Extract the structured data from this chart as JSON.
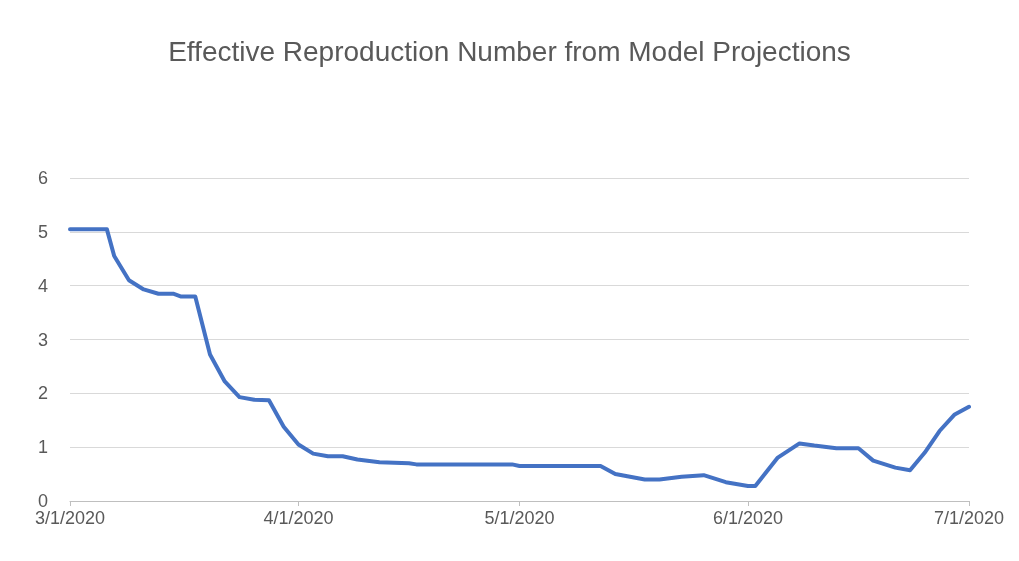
{
  "chart_data": {
    "type": "line",
    "title": "Effective Reproduction Number from Model Projections",
    "x": [
      "2020-03-01",
      "2020-03-06",
      "2020-03-07",
      "2020-03-09",
      "2020-03-11",
      "2020-03-13",
      "2020-03-15",
      "2020-03-16",
      "2020-03-18",
      "2020-03-20",
      "2020-03-22",
      "2020-03-24",
      "2020-03-26",
      "2020-03-28",
      "2020-03-30",
      "2020-04-01",
      "2020-04-03",
      "2020-04-05",
      "2020-04-07",
      "2020-04-09",
      "2020-04-12",
      "2020-04-16",
      "2020-04-17",
      "2020-04-30",
      "2020-05-01",
      "2020-05-12",
      "2020-05-14",
      "2020-05-18",
      "2020-05-20",
      "2020-05-23",
      "2020-05-26",
      "2020-05-29",
      "2020-06-01",
      "2020-06-02",
      "2020-06-05",
      "2020-06-08",
      "2020-06-10",
      "2020-06-13",
      "2020-06-16",
      "2020-06-18",
      "2020-06-21",
      "2020-06-23",
      "2020-06-25",
      "2020-06-27",
      "2020-06-29",
      "2020-07-01"
    ],
    "series": [
      {
        "color": "#4472c4",
        "values": [
          5.05,
          5.05,
          4.55,
          4.1,
          3.93,
          3.85,
          3.85,
          3.8,
          3.8,
          2.72,
          2.22,
          1.93,
          1.88,
          1.87,
          1.38,
          1.05,
          0.88,
          0.83,
          0.83,
          0.77,
          0.72,
          0.7,
          0.68,
          0.68,
          0.65,
          0.65,
          0.5,
          0.4,
          0.4,
          0.45,
          0.48,
          0.35,
          0.28,
          0.28,
          0.8,
          1.07,
          1.03,
          0.98,
          0.98,
          0.75,
          0.62,
          0.57,
          0.9,
          1.3,
          1.6,
          1.75
        ]
      }
    ],
    "xlim": [
      "2020-03-01",
      "2020-07-01"
    ],
    "xticks": [
      {
        "value": "2020-03-01",
        "label": "3/1/2020"
      },
      {
        "value": "2020-04-01",
        "label": "4/1/2020"
      },
      {
        "value": "2020-05-01",
        "label": "5/1/2020"
      },
      {
        "value": "2020-06-01",
        "label": "6/1/2020"
      },
      {
        "value": "2020-07-01",
        "label": "7/1/2020"
      }
    ],
    "ylim": [
      0,
      6
    ],
    "yticks": [
      0,
      1,
      2,
      3,
      4,
      5,
      6
    ],
    "grid": "y",
    "marker": "none",
    "line_style": "solid"
  }
}
